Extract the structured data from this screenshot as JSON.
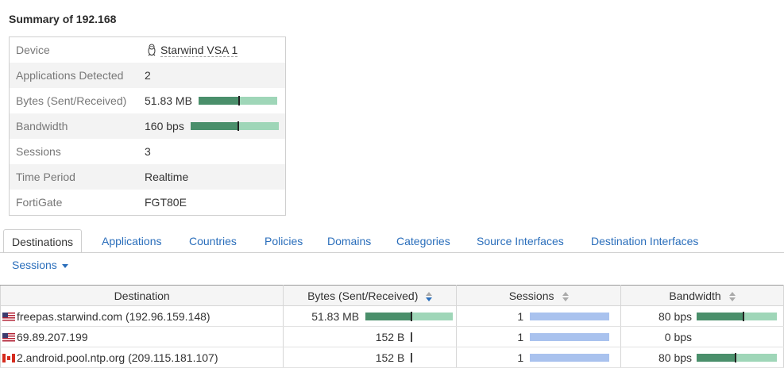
{
  "title": "Summary of 192.168",
  "summary": {
    "rows": [
      {
        "label": "Device",
        "value": "Starwind VSA 1"
      },
      {
        "label": "Applications Detected",
        "value": "2"
      },
      {
        "label": "Bytes (Sent/Received)",
        "value": "51.83 MB",
        "sent_fraction": 0.52
      },
      {
        "label": "Bandwidth",
        "value": "160 bps",
        "sent_fraction": 0.54
      },
      {
        "label": "Sessions",
        "value": "3"
      },
      {
        "label": "Time Period",
        "value": "Realtime"
      },
      {
        "label": "FortiGate",
        "value": "FGT80E"
      }
    ]
  },
  "tabs": [
    "Destinations",
    "Applications",
    "Countries",
    "Policies",
    "Domains",
    "Categories",
    "Source Interfaces",
    "Destination Interfaces"
  ],
  "sessions_tab": "Sessions",
  "table": {
    "headers": [
      "Destination",
      "Bytes (Sent/Received)",
      "Sessions",
      "Bandwidth"
    ],
    "rows": [
      {
        "flag": "us-flag-icon",
        "destination": "freepas.starwind.com (192.96.159.148)",
        "bytes": "51.83 MB",
        "bytes_sent_fraction": 0.53,
        "sessions": "1",
        "bandwidth": "80 bps",
        "bandwidth_sent_fraction": 0.58
      },
      {
        "flag": "us-flag-icon",
        "destination": "69.89.207.199",
        "bytes": "152 B",
        "bytes_sent_fraction": 0,
        "sessions": "1",
        "bandwidth": "0 bps",
        "bandwidth_sent_fraction": 0
      },
      {
        "flag": "ca-flag-icon",
        "destination": "2.android.pool.ntp.org (209.115.181.107)",
        "bytes": "152 B",
        "bytes_sent_fraction": 0,
        "sessions": "1",
        "bandwidth": "80 bps",
        "bandwidth_sent_fraction": 0.49
      }
    ]
  },
  "colors": {
    "sent": "#4a8f6b",
    "received": "#9fd6b8",
    "sessions_bar": "#a9c2ee",
    "link": "#2a6ebb"
  }
}
